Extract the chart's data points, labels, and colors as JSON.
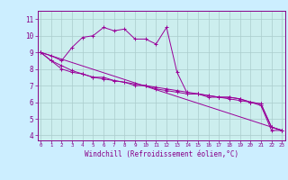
{
  "xlabel": "Windchill (Refroidissement éolien,°C)",
  "background_color": "#cceeff",
  "plot_bg_color": "#cceeee",
  "grid_color": "#aacccc",
  "line_color": "#990099",
  "tick_color": "#880088",
  "spine_color": "#880088",
  "x_ticks": [
    0,
    1,
    2,
    3,
    4,
    5,
    6,
    7,
    8,
    9,
    10,
    11,
    12,
    13,
    14,
    15,
    16,
    17,
    18,
    19,
    20,
    21,
    22,
    23
  ],
  "y_ticks": [
    4,
    5,
    6,
    7,
    8,
    9,
    10,
    11
  ],
  "xlim": [
    -0.3,
    23.3
  ],
  "ylim": [
    3.7,
    11.5
  ],
  "series": [
    [
      9.0,
      8.8,
      8.5,
      9.3,
      9.9,
      10.0,
      10.5,
      10.3,
      10.4,
      9.8,
      9.8,
      9.5,
      10.5,
      7.8,
      6.5,
      6.5,
      6.3,
      6.3,
      6.3,
      6.2,
      6.0,
      5.8,
      4.3,
      4.3
    ],
    [
      9.0,
      null,
      null,
      null,
      null,
      null,
      null,
      null,
      null,
      null,
      null,
      null,
      null,
      null,
      null,
      null,
      null,
      null,
      null,
      null,
      null,
      null,
      null,
      4.3
    ],
    [
      9.0,
      8.5,
      8.0,
      7.8,
      7.7,
      7.5,
      7.5,
      7.3,
      7.2,
      7.0,
      7.0,
      6.8,
      6.7,
      6.6,
      6.5,
      6.5,
      6.4,
      6.3,
      6.3,
      6.2,
      6.0,
      5.9,
      4.5,
      4.3
    ],
    [
      9.0,
      8.5,
      8.2,
      7.9,
      7.7,
      7.5,
      7.4,
      7.3,
      7.2,
      7.1,
      7.0,
      6.9,
      6.8,
      6.7,
      6.6,
      6.5,
      6.4,
      6.3,
      6.2,
      6.1,
      6.0,
      5.9,
      4.5,
      4.3
    ]
  ]
}
